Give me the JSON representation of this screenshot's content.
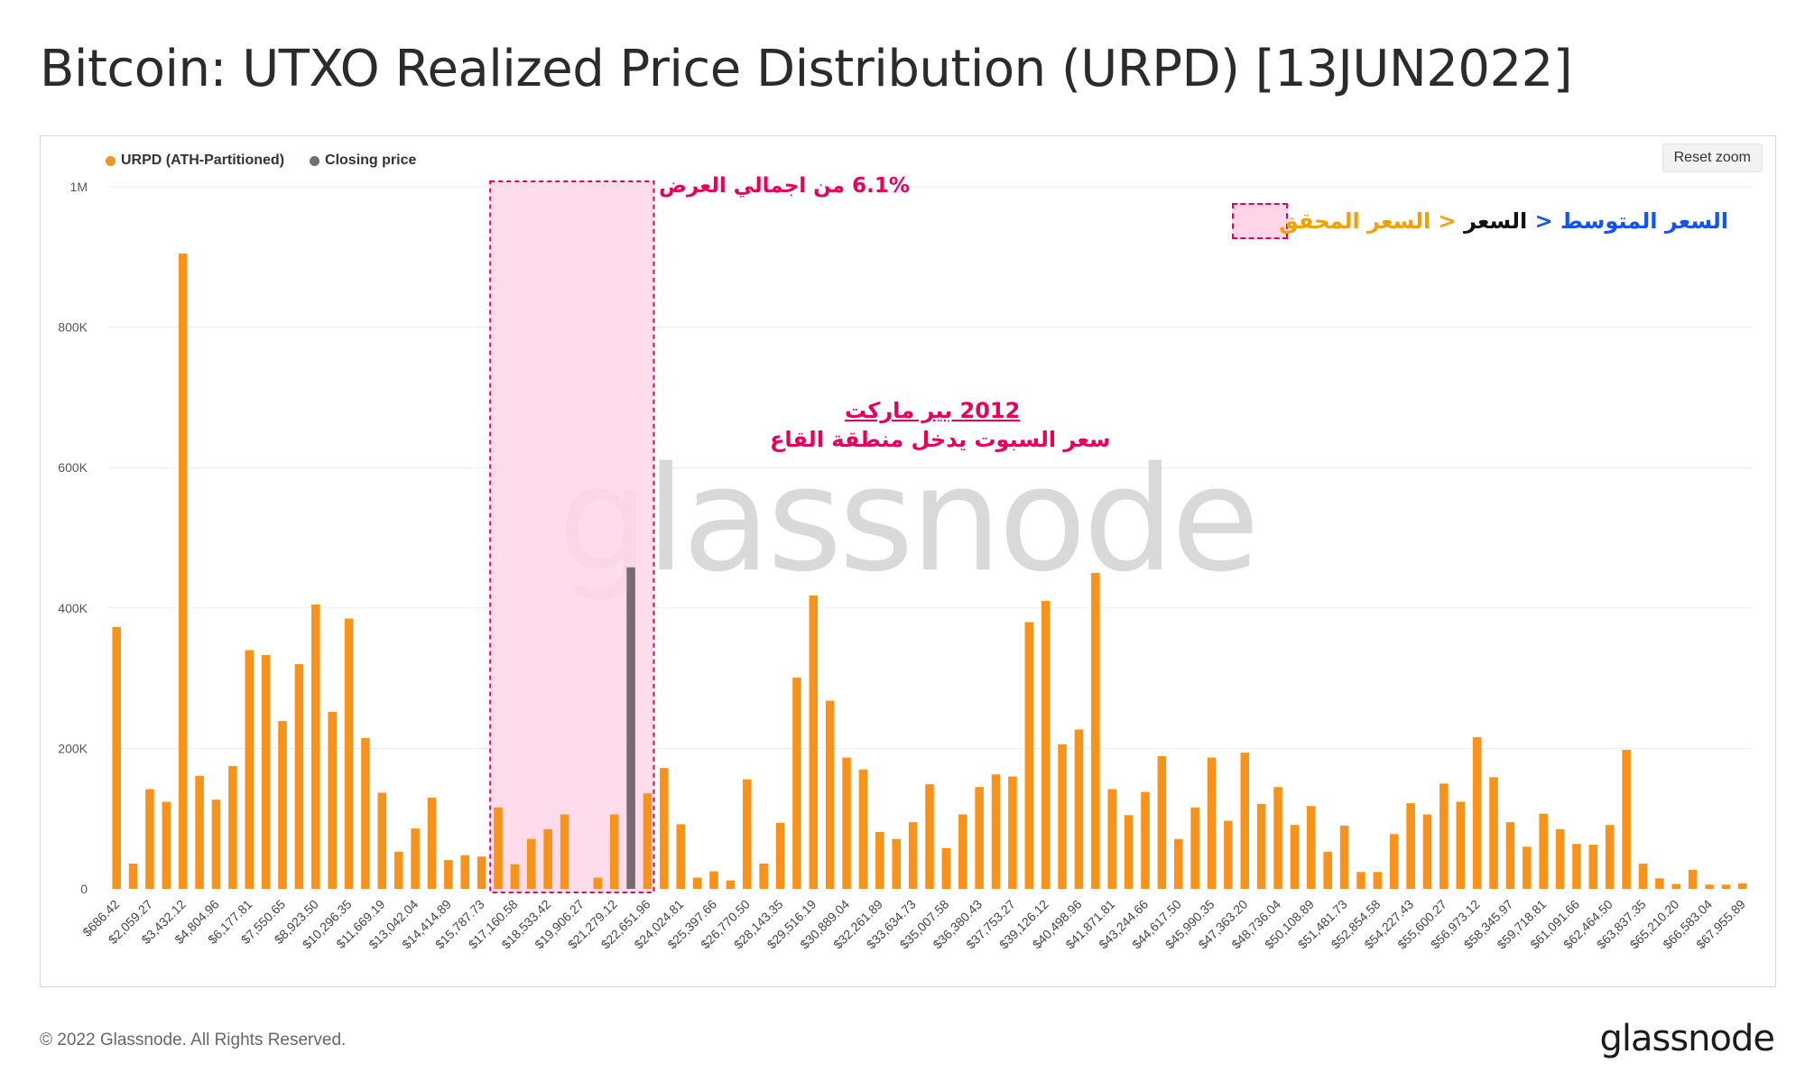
{
  "title": "Bitcoin: UTXO Realized Price Distribution (URPD) [13JUN2022]",
  "legend": {
    "urpd_label": "URPD (ATH-Partitioned)",
    "closing_label": "Closing price"
  },
  "reset_zoom_label": "Reset zoom",
  "annotations": {
    "zone_pct": "6.1% من اجمالي العرض",
    "bear_title": "2012 بير ماركت",
    "bear_subtitle": "سعر السبوت يدخل منطقة القاع",
    "key_mean": "السعر المتوسط",
    "key_sep1": "<",
    "key_price": "السعر",
    "key_sep2": "<",
    "key_realized": "السعر المحقق"
  },
  "footer": "© 2022 Glassnode. All Rights Reserved.",
  "brand": "glassnode",
  "watermark": "glassnode",
  "colors": {
    "urpd": "#f7931a",
    "closing": "#7a6a72",
    "zone_fill": "#ffd6e7",
    "zone_border": "#e8005a",
    "annotation": "#e8005a",
    "mean": "#1553ef",
    "realized": "#f0a10a",
    "price": "#111111"
  },
  "chart_data": {
    "type": "bar",
    "title": "Bitcoin: UTXO Realized Price Distribution (URPD) [13JUN2022]",
    "ylim": [
      0,
      1000000
    ],
    "yticks": [
      {
        "value": 0,
        "label": "0"
      },
      {
        "value": 200000,
        "label": "200K"
      },
      {
        "value": 400000,
        "label": "400K"
      },
      {
        "value": 600000,
        "label": "600K"
      },
      {
        "value": 800000,
        "label": "800K"
      },
      {
        "value": 1000000,
        "label": "1M"
      }
    ],
    "x_tick_labels": [
      "$686.42",
      "$2,059.27",
      "$3,432.12",
      "$4,804.96",
      "$6,177.81",
      "$7,550.65",
      "$8,923.50",
      "$10,296.35",
      "$11,669.19",
      "$13,042.04",
      "$14,414.89",
      "$15,787.73",
      "$17,160.58",
      "$18,533.42",
      "$19,906.27",
      "$21,279.12",
      "$22,651.96",
      "$24,024.81",
      "$25,397.66",
      "$26,770.50",
      "$28,143.35",
      "$29,516.19",
      "$30,889.04",
      "$32,261.89",
      "$33,634.73",
      "$35,007.58",
      "$36,380.43",
      "$37,753.27",
      "$39,126.12",
      "$40,498.96",
      "$41,871.81",
      "$43,244.66",
      "$44,617.50",
      "$45,990.35",
      "$47,363.20",
      "$48,736.04",
      "$50,108.89",
      "$51,481.73",
      "$52,854.58",
      "$54,227.43",
      "$55,600.27",
      "$56,973.12",
      "$58,345.97",
      "$59,718.81",
      "$61,091.66",
      "$62,464.50",
      "$63,837.35",
      "$65,210.20",
      "$66,583.04",
      "$67,955.89"
    ],
    "bucket_start": 686.42,
    "bucket_width": 686.42,
    "closing_bucket_index": 31,
    "zone_bucket_range": [
      23,
      32
    ],
    "series": [
      {
        "name": "URPD (ATH-Partitioned)",
        "values": [
          373000,
          36000,
          142000,
          124000,
          905000,
          161000,
          127000,
          175000,
          340000,
          333000,
          239000,
          320000,
          405000,
          252000,
          385000,
          215000,
          137000,
          53000,
          86000,
          130000,
          41000,
          48000,
          46000,
          116000,
          35000,
          71000,
          85000,
          106000,
          0,
          16000,
          106000,
          458000,
          136000,
          172000,
          92000,
          16000,
          25000,
          12000,
          156000,
          36000,
          94000,
          301000,
          418000,
          268000,
          187000,
          170000,
          81000,
          71000,
          95000,
          149000,
          58000,
          106000,
          145000,
          163000,
          160000,
          380000,
          410000,
          206000,
          227000,
          450000,
          142000,
          105000,
          138000,
          189000,
          71000,
          116000,
          187000,
          97000,
          194000,
          121000,
          145000,
          91000,
          118000,
          53000,
          90000,
          24000,
          24000,
          78000,
          122000,
          106000,
          150000,
          124000,
          216000,
          159000,
          95000,
          60000,
          107000,
          85000,
          64000,
          63000,
          91000,
          198000,
          36000,
          15000,
          7000,
          27000,
          6000,
          6000,
          8000
        ]
      }
    ]
  }
}
